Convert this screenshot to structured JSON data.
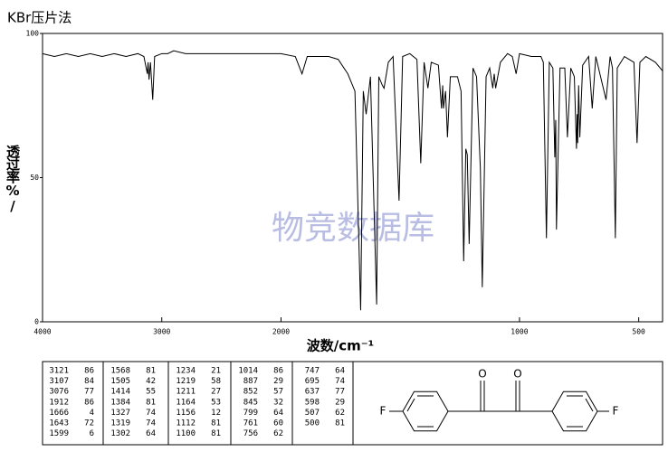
{
  "chart_data": {
    "type": "line",
    "title": "KBr压片法",
    "xlabel": "波数/cm⁻¹",
    "ylabel": "透过率%/",
    "watermark": "物竞数据库",
    "color": "#000000",
    "xlim": [
      4000,
      400
    ],
    "xscale_break": 2000,
    "xscale_ratio": 2,
    "xticks": [
      4000,
      3000,
      2000,
      1000,
      500
    ],
    "ylim": [
      0,
      100
    ],
    "yticks": [
      0,
      50,
      100
    ],
    "x": [
      4000,
      3900,
      3800,
      3700,
      3600,
      3500,
      3400,
      3300,
      3200,
      3150,
      3121,
      3115,
      3107,
      3095,
      3076,
      3060,
      3000,
      2950,
      2900,
      2800,
      2600,
      2400,
      2200,
      2000,
      1940,
      1912,
      1890,
      1850,
      1800,
      1760,
      1720,
      1690,
      1666,
      1655,
      1643,
      1625,
      1599,
      1590,
      1575,
      1568,
      1550,
      1530,
      1505,
      1490,
      1460,
      1430,
      1414,
      1400,
      1384,
      1370,
      1340,
      1327,
      1322,
      1319,
      1310,
      1302,
      1290,
      1260,
      1245,
      1234,
      1225,
      1219,
      1211,
      1195,
      1180,
      1164,
      1156,
      1140,
      1125,
      1112,
      1106,
      1100,
      1080,
      1050,
      1030,
      1014,
      1000,
      950,
      910,
      900,
      887,
      875,
      860,
      852,
      848,
      845,
      830,
      810,
      799,
      785,
      770,
      761,
      758,
      756,
      752,
      747,
      735,
      710,
      695,
      680,
      637,
      620,
      610,
      598,
      590,
      560,
      520,
      507,
      495,
      470,
      430,
      400
    ],
    "y": [
      93,
      92,
      93,
      92,
      93,
      92,
      93,
      92,
      93,
      92,
      86,
      90,
      84,
      90,
      77,
      92,
      93,
      93,
      94,
      93,
      93,
      93,
      93,
      93,
      92,
      86,
      92,
      92,
      92,
      91,
      86,
      80,
      4,
      80,
      72,
      85,
      6,
      85,
      82,
      81,
      90,
      92,
      42,
      92,
      93,
      91,
      55,
      90,
      81,
      90,
      89,
      74,
      82,
      74,
      80,
      64,
      85,
      85,
      80,
      21,
      60,
      58,
      27,
      88,
      85,
      53,
      12,
      85,
      88,
      81,
      86,
      81,
      90,
      93,
      92,
      86,
      93,
      92,
      92,
      90,
      29,
      90,
      88,
      57,
      70,
      32,
      88,
      88,
      64,
      88,
      85,
      60,
      72,
      62,
      82,
      64,
      89,
      92,
      74,
      92,
      77,
      92,
      88,
      29,
      88,
      92,
      90,
      62,
      90,
      92,
      90,
      87
    ]
  },
  "peak_table": {
    "columns": [
      [
        [
          3121,
          86
        ],
        [
          3107,
          84
        ],
        [
          3076,
          77
        ],
        [
          1912,
          86
        ],
        [
          1666,
          4
        ],
        [
          1643,
          72
        ],
        [
          1599,
          6
        ]
      ],
      [
        [
          1568,
          81
        ],
        [
          1505,
          42
        ],
        [
          1414,
          55
        ],
        [
          1384,
          81
        ],
        [
          1327,
          74
        ],
        [
          1319,
          74
        ],
        [
          1302,
          64
        ]
      ],
      [
        [
          1234,
          21
        ],
        [
          1219,
          58
        ],
        [
          1211,
          27
        ],
        [
          1164,
          53
        ],
        [
          1156,
          12
        ],
        [
          1112,
          81
        ],
        [
          1100,
          81
        ]
      ],
      [
        [
          1014,
          86
        ],
        [
          887,
          29
        ],
        [
          852,
          57
        ],
        [
          845,
          32
        ],
        [
          799,
          64
        ],
        [
          761,
          60
        ],
        [
          756,
          62
        ]
      ],
      [
        [
          747,
          64
        ],
        [
          695,
          74
        ],
        [
          637,
          77
        ],
        [
          598,
          29
        ],
        [
          507,
          62
        ],
        [
          500,
          81
        ]
      ]
    ]
  },
  "structure": {
    "atoms": [
      "F",
      "O",
      "O",
      "F"
    ]
  }
}
